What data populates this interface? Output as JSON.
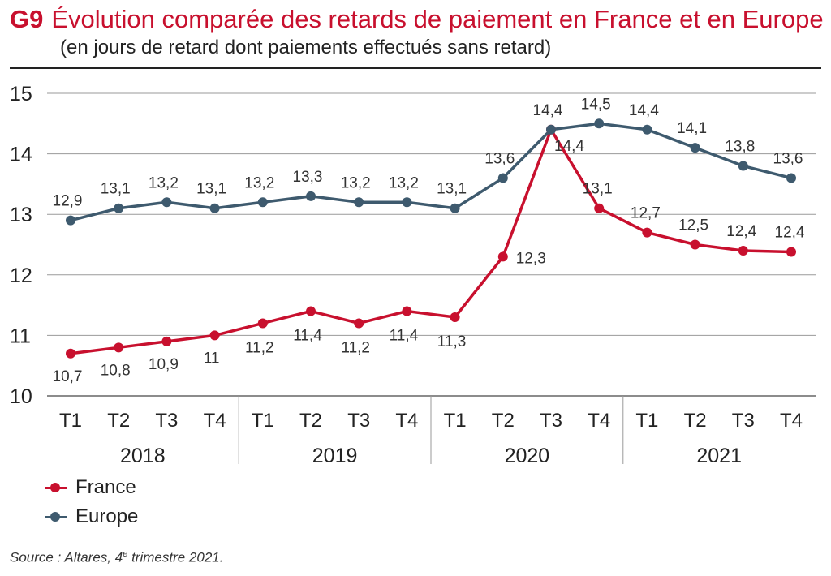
{
  "header": {
    "code": "G9",
    "title": "Évolution comparée des retards de paiement en France et en Europe",
    "subtitle": "(en jours de retard dont paiements effectués sans retard)"
  },
  "source": {
    "prefix": "Source : Altares, 4",
    "sup": "e",
    "suffix": " trimestre 2021."
  },
  "chart_data": {
    "type": "line",
    "title": "Évolution comparée des retards de paiement en France et en Europe",
    "subtitle": "(en jours de retard dont paiements effectués sans retard)",
    "ylim": [
      10,
      15
    ],
    "yticks": [
      10,
      11,
      12,
      13,
      14,
      15
    ],
    "grid": true,
    "categories": [
      "T1",
      "T2",
      "T3",
      "T4",
      "T1",
      "T2",
      "T3",
      "T4",
      "T1",
      "T2",
      "T3",
      "T4",
      "T1",
      "T2",
      "T3",
      "T4"
    ],
    "years": [
      "2018",
      "2019",
      "2020",
      "2021"
    ],
    "legend_position": "bottom-left",
    "series": [
      {
        "name": "France",
        "color": "#c8102e",
        "values": [
          10.7,
          10.8,
          10.9,
          11.0,
          11.2,
          11.4,
          11.2,
          11.4,
          11.3,
          12.3,
          14.4,
          13.1,
          12.7,
          12.5,
          12.4,
          12.38
        ],
        "labels": [
          "10,7",
          "10,8",
          "10,9",
          "11",
          "11,2",
          "11,4",
          "11,2",
          "11,4",
          "11,3",
          "12,3",
          "14,4",
          "13,1",
          "12,7",
          "12,5",
          "12,4",
          "12,4"
        ]
      },
      {
        "name": "Europe",
        "color": "#3e5a6e",
        "values": [
          12.9,
          13.1,
          13.2,
          13.1,
          13.2,
          13.3,
          13.2,
          13.2,
          13.1,
          13.6,
          14.4,
          14.5,
          14.4,
          14.1,
          13.8,
          13.6
        ],
        "labels": [
          "12,9",
          "13,1",
          "13,2",
          "13,1",
          "13,2",
          "13,3",
          "13,2",
          "13,2",
          "13,1",
          "13,6",
          "14,4",
          "14,5",
          "14,4",
          "14,1",
          "13,8",
          "13,6"
        ]
      }
    ]
  }
}
